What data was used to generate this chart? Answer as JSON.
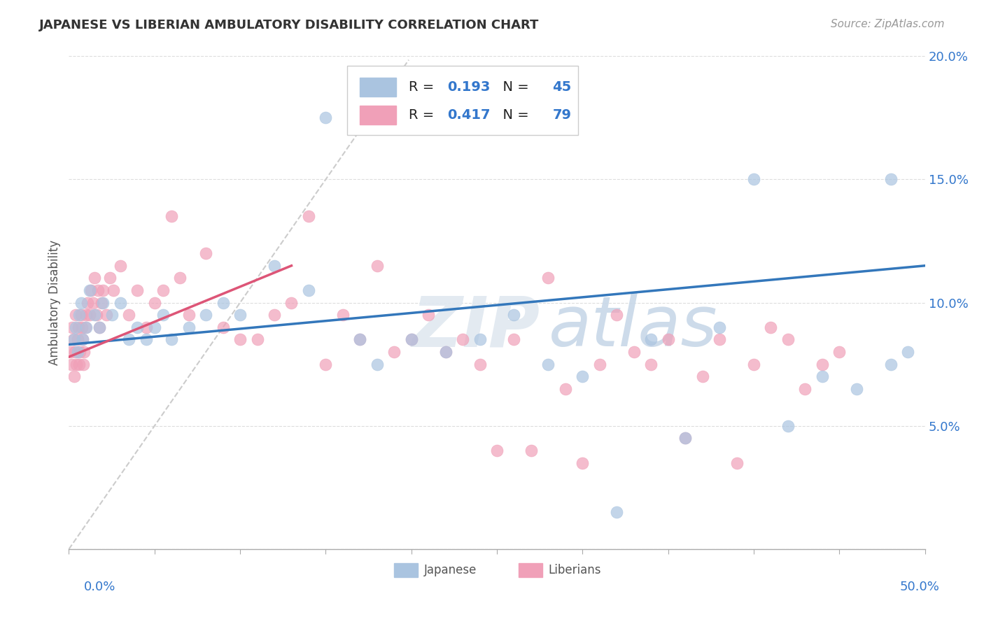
{
  "title": "JAPANESE VS LIBERIAN AMBULATORY DISABILITY CORRELATION CHART",
  "source": "Source: ZipAtlas.com",
  "ylabel": "Ambulatory Disability",
  "xlim": [
    0,
    50
  ],
  "ylim": [
    0,
    20
  ],
  "yticks": [
    0,
    5,
    10,
    15,
    20
  ],
  "ytick_labels": [
    "",
    "5.0%",
    "10.0%",
    "15.0%",
    "20.0%"
  ],
  "watermark": "ZIPatlas",
  "japanese_color": "#aac4e0",
  "liberian_color": "#f0a0b8",
  "japanese_line_color": "#3377bb",
  "liberian_line_color": "#dd5577",
  "japanese_R": 0.193,
  "japanese_N": 45,
  "liberian_R": 0.417,
  "liberian_N": 79,
  "legend_text_color": "#3377cc",
  "background_color": "#ffffff",
  "grid_color": "#dddddd",
  "japanese_points_x": [
    0.3,
    0.4,
    0.5,
    0.6,
    0.7,
    0.8,
    1.0,
    1.2,
    1.5,
    1.8,
    2.0,
    2.5,
    3.0,
    3.5,
    4.0,
    4.5,
    5.0,
    5.5,
    6.0,
    7.0,
    8.0,
    9.0,
    10.0,
    12.0,
    14.0,
    15.0,
    17.0,
    18.0,
    20.0,
    22.0,
    24.0,
    26.0,
    28.0,
    30.0,
    32.0,
    34.0,
    36.0,
    38.0,
    40.0,
    42.0,
    44.0,
    46.0,
    48.0,
    48.0,
    49.0
  ],
  "japanese_points_y": [
    8.5,
    9.0,
    8.0,
    9.5,
    10.0,
    8.5,
    9.0,
    10.5,
    9.5,
    9.0,
    10.0,
    9.5,
    10.0,
    8.5,
    9.0,
    8.5,
    9.0,
    9.5,
    8.5,
    9.0,
    9.5,
    10.0,
    9.5,
    11.5,
    10.5,
    17.5,
    8.5,
    7.5,
    8.5,
    8.0,
    8.5,
    9.5,
    7.5,
    7.0,
    1.5,
    8.5,
    4.5,
    9.0,
    15.0,
    5.0,
    7.0,
    6.5,
    7.5,
    15.0,
    8.0
  ],
  "liberian_points_x": [
    0.1,
    0.15,
    0.2,
    0.25,
    0.3,
    0.35,
    0.4,
    0.45,
    0.5,
    0.55,
    0.6,
    0.65,
    0.7,
    0.75,
    0.8,
    0.85,
    0.9,
    0.95,
    1.0,
    1.1,
    1.2,
    1.3,
    1.4,
    1.5,
    1.6,
    1.7,
    1.8,
    1.9,
    2.0,
    2.2,
    2.4,
    2.6,
    3.0,
    3.5,
    4.0,
    4.5,
    5.0,
    5.5,
    6.0,
    6.5,
    7.0,
    8.0,
    9.0,
    10.0,
    11.0,
    12.0,
    13.0,
    14.0,
    15.0,
    16.0,
    17.0,
    18.0,
    19.0,
    20.0,
    21.0,
    22.0,
    23.0,
    24.0,
    25.0,
    26.0,
    27.0,
    28.0,
    29.0,
    30.0,
    31.0,
    32.0,
    33.0,
    34.0,
    35.0,
    36.0,
    37.0,
    38.0,
    39.0,
    40.0,
    41.0,
    42.0,
    43.0,
    44.0,
    45.0
  ],
  "liberian_points_y": [
    8.0,
    7.5,
    9.0,
    8.5,
    7.0,
    8.0,
    9.5,
    7.5,
    8.5,
    9.0,
    7.5,
    8.0,
    9.5,
    9.0,
    8.5,
    7.5,
    8.0,
    9.0,
    9.5,
    10.0,
    9.5,
    10.5,
    10.0,
    11.0,
    9.5,
    10.5,
    9.0,
    10.0,
    10.5,
    9.5,
    11.0,
    10.5,
    11.5,
    9.5,
    10.5,
    9.0,
    10.0,
    10.5,
    13.5,
    11.0,
    9.5,
    12.0,
    9.0,
    8.5,
    8.5,
    9.5,
    10.0,
    13.5,
    7.5,
    9.5,
    8.5,
    11.5,
    8.0,
    8.5,
    9.5,
    8.0,
    8.5,
    7.5,
    4.0,
    8.5,
    4.0,
    11.0,
    6.5,
    3.5,
    7.5,
    9.5,
    8.0,
    7.5,
    8.5,
    4.5,
    7.0,
    8.5,
    3.5,
    7.5,
    9.0,
    8.5,
    6.5,
    7.5,
    8.0
  ],
  "jp_line_x0": 0,
  "jp_line_y0": 8.3,
  "jp_line_x1": 50,
  "jp_line_y1": 11.5,
  "lib_line_x0": 0,
  "lib_line_y0": 7.8,
  "lib_line_x1": 13,
  "lib_line_y1": 11.5
}
